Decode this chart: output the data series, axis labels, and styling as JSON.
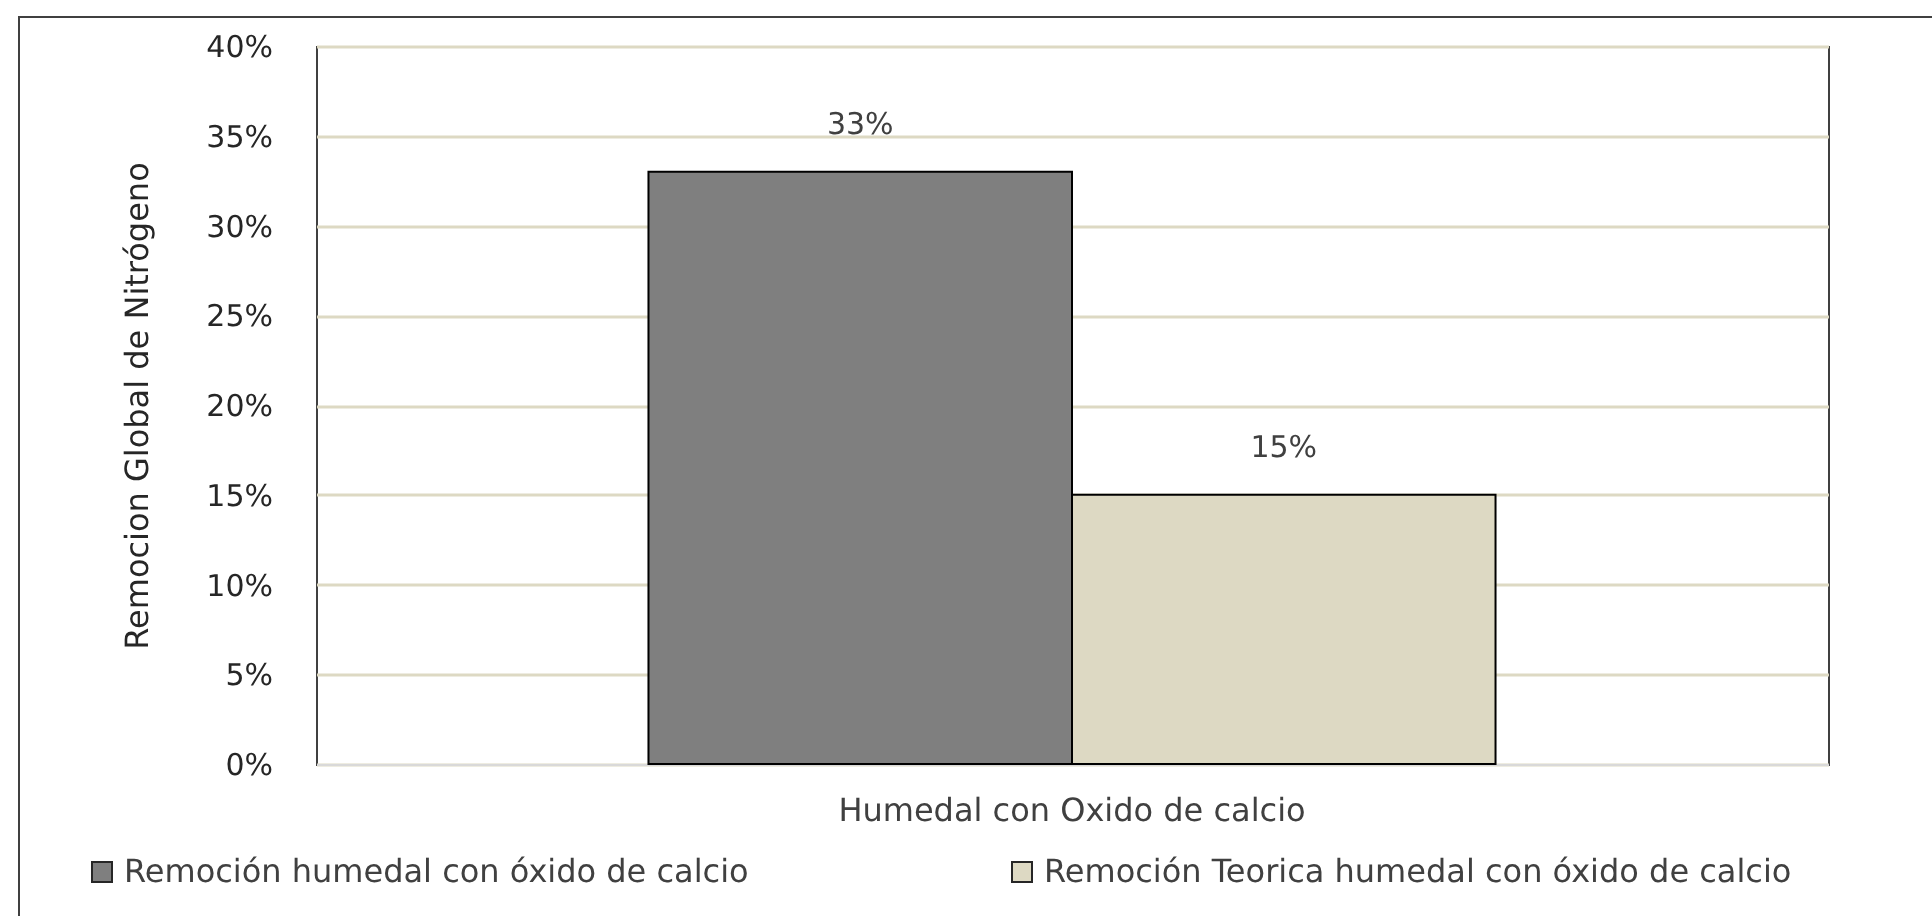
{
  "chart_data": {
    "type": "bar",
    "ylabel": "Remocion Global de Nitrógeno",
    "categories": [
      "Humedal con Oxido de calcio"
    ],
    "series": [
      {
        "name": "Remoción humedal con óxido de calcio",
        "color": "#7f7f7f",
        "values": [
          33
        ],
        "value_labels": [
          "33%"
        ]
      },
      {
        "name": "Remoción Teorica humedal con óxido de calcio",
        "color": "#ddd9c3",
        "values": [
          15
        ],
        "value_labels": [
          "15%"
        ]
      }
    ],
    "ylim": [
      0,
      40
    ],
    "yticks": [
      {
        "value": 0,
        "label": "0%"
      },
      {
        "value": 5,
        "label": "5%"
      },
      {
        "value": 10,
        "label": "10%"
      },
      {
        "value": 15,
        "label": "15%"
      },
      {
        "value": 20,
        "label": "20%"
      },
      {
        "value": 25,
        "label": "25%"
      },
      {
        "value": 30,
        "label": "30%"
      },
      {
        "value": 35,
        "label": "35%"
      },
      {
        "value": 40,
        "label": "40%"
      }
    ],
    "grid": "y",
    "legend": "bottom"
  }
}
